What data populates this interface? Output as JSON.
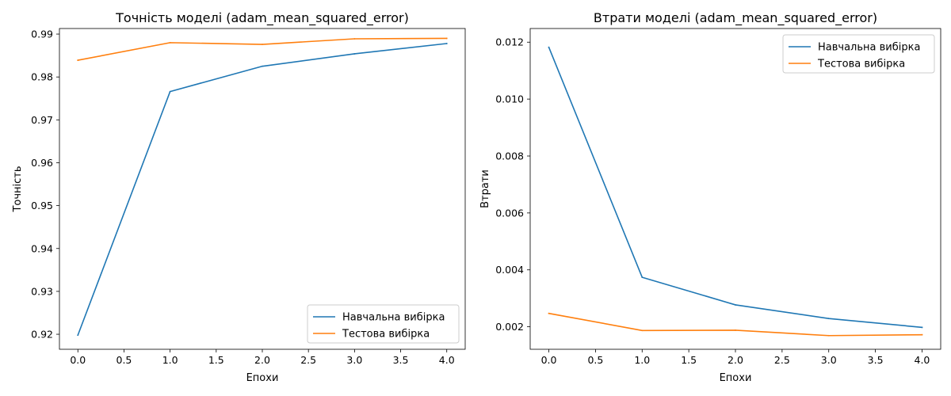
{
  "chart_data": [
    {
      "type": "line",
      "title": "Точність моделі (adam_mean_squared_error)",
      "xlabel": "Епохи",
      "ylabel": "Точність",
      "x": [
        0,
        1,
        2,
        3,
        4
      ],
      "xlim": [
        -0.2,
        4.2
      ],
      "ylim": [
        0.9165,
        0.9913
      ],
      "xticks": [
        0.0,
        0.5,
        1.0,
        1.5,
        2.0,
        2.5,
        3.0,
        3.5,
        4.0
      ],
      "xtick_labels": [
        "0.0",
        "0.5",
        "1.0",
        "1.5",
        "2.0",
        "2.5",
        "3.0",
        "3.5",
        "4.0"
      ],
      "yticks": [
        0.92,
        0.93,
        0.94,
        0.95,
        0.96,
        0.97,
        0.98,
        0.99
      ],
      "ytick_labels": [
        "0.92",
        "0.93",
        "0.94",
        "0.95",
        "0.96",
        "0.97",
        "0.98",
        "0.99"
      ],
      "grid": false,
      "legend": "lower-right",
      "series": [
        {
          "name": "Навчальна вибірка",
          "color": "#1f77b4",
          "values": [
            0.9198,
            0.9766,
            0.9825,
            0.9854,
            0.9878
          ]
        },
        {
          "name": "Тестова вибірка",
          "color": "#ff7f0e",
          "values": [
            0.9839,
            0.988,
            0.9876,
            0.9889,
            0.989
          ]
        }
      ]
    },
    {
      "type": "line",
      "title": "Втрати моделі (adam_mean_squared_error)",
      "xlabel": "Епохи",
      "ylabel": "Втрати",
      "x": [
        0,
        1,
        2,
        3,
        4
      ],
      "xlim": [
        -0.2,
        4.2
      ],
      "ylim": [
        0.00121,
        0.01248
      ],
      "xticks": [
        0.0,
        0.5,
        1.0,
        1.5,
        2.0,
        2.5,
        3.0,
        3.5,
        4.0
      ],
      "xtick_labels": [
        "0.0",
        "0.5",
        "1.0",
        "1.5",
        "2.0",
        "2.5",
        "3.0",
        "3.5",
        "4.0"
      ],
      "yticks": [
        0.002,
        0.004,
        0.006,
        0.008,
        0.01,
        0.012
      ],
      "ytick_labels": [
        "0.002",
        "0.004",
        "0.006",
        "0.008",
        "0.010",
        "0.012"
      ],
      "grid": false,
      "legend": "upper-right",
      "series": [
        {
          "name": "Навчальна вибірка",
          "color": "#1f77b4",
          "values": [
            0.01182,
            0.00374,
            0.00277,
            0.00229,
            0.00198
          ]
        },
        {
          "name": "Тестова вибірка",
          "color": "#ff7f0e",
          "values": [
            0.00247,
            0.00187,
            0.00188,
            0.00169,
            0.00172
          ]
        }
      ]
    }
  ]
}
